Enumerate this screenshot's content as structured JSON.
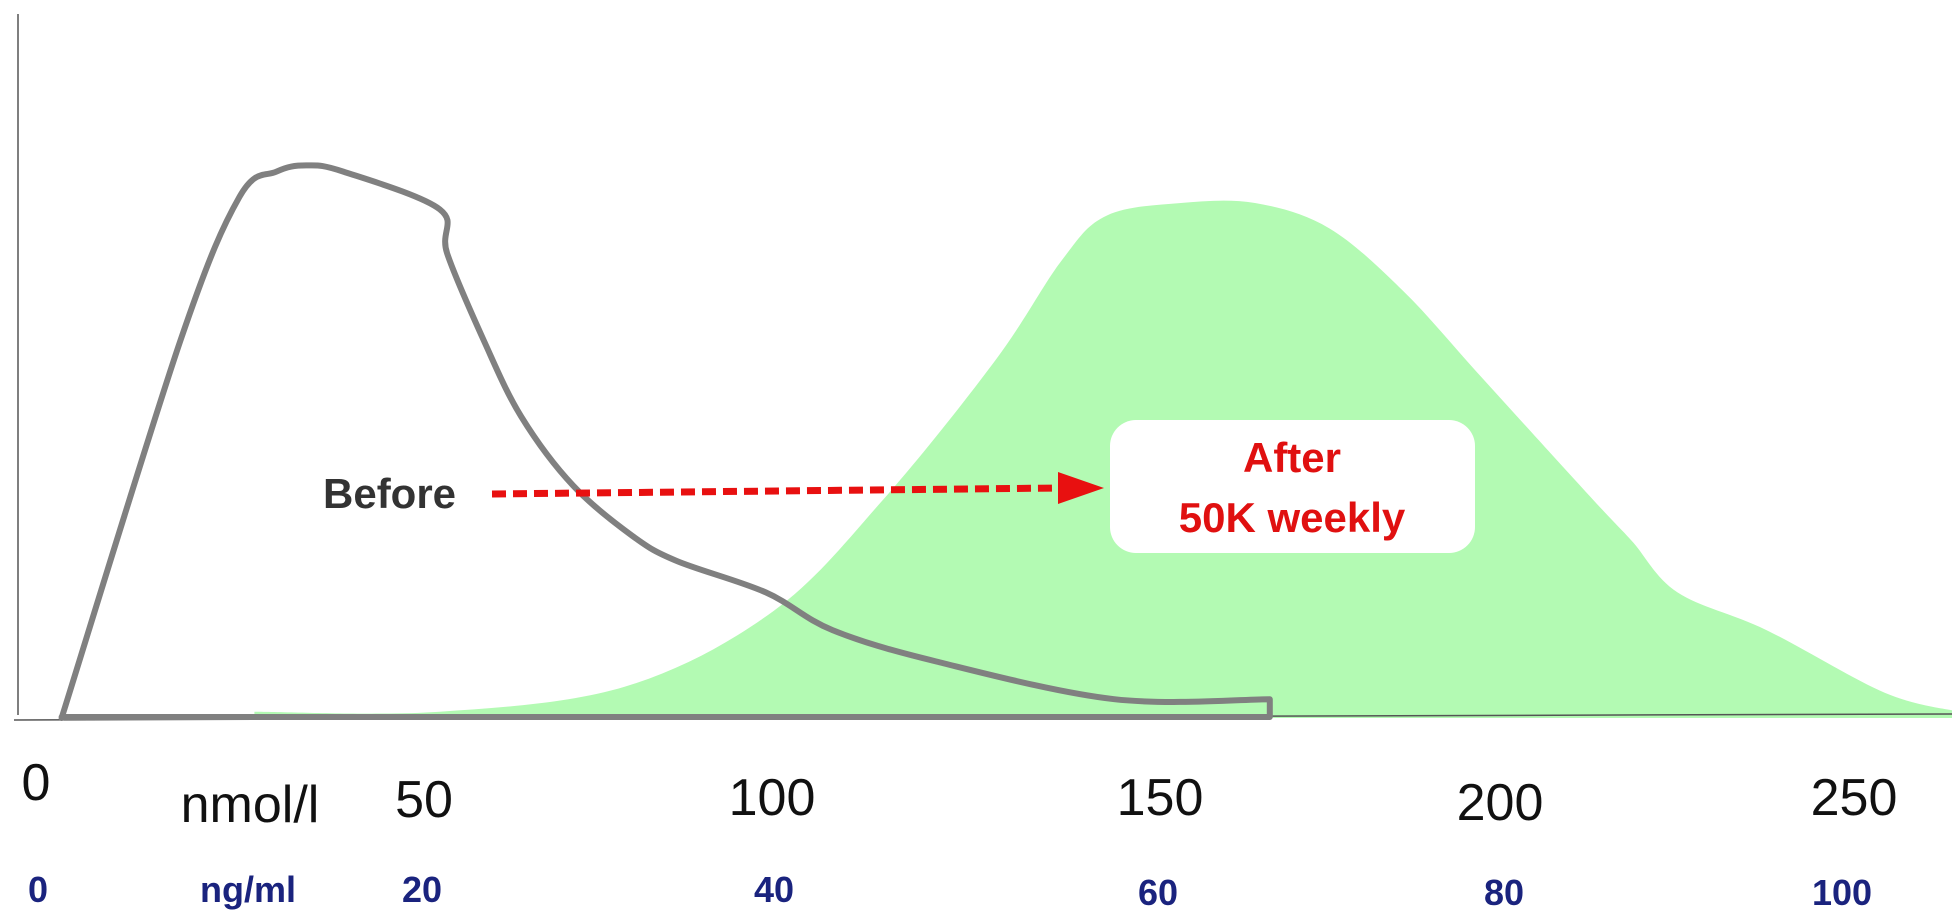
{
  "chart_data": {
    "type": "area",
    "title": "",
    "xlabel": "",
    "ylabel": "",
    "xlim": [
      0,
      260
    ],
    "ylim": [
      0,
      100
    ],
    "grid": false,
    "x_axis_primary": {
      "unit": "nmol/l",
      "ticks": [
        "0",
        "50",
        "100",
        "150",
        "200",
        "250"
      ],
      "tick_values": [
        0,
        50,
        100,
        150,
        200,
        250
      ]
    },
    "x_axis_secondary": {
      "unit": "ng/ml",
      "ticks": [
        "0",
        "20",
        "40",
        "60",
        "80",
        "100"
      ],
      "tick_values": [
        0,
        50,
        100,
        150,
        200,
        250
      ]
    },
    "series": [
      {
        "name": "Before",
        "style": "line",
        "color": "#808080",
        "x": [
          4,
          20,
          28,
          33,
          37,
          42,
          55,
          56,
          61,
          66,
          73,
          81,
          87,
          99,
          108,
          122,
          146,
          167
        ],
        "y": [
          0,
          60,
          83,
          87,
          88,
          87,
          81,
          74,
          60,
          48,
          37,
          29,
          25,
          20,
          14,
          9,
          3,
          3
        ]
      },
      {
        "name": "After 50K weekly",
        "style": "area",
        "color": "#b3fab3",
        "x": [
          30,
          55,
          80,
          100,
          115,
          130,
          139,
          145,
          155,
          165,
          175,
          185,
          195,
          205,
          212,
          216,
          222,
          234,
          250,
          260
        ],
        "y": [
          1,
          1,
          5,
          17,
          35,
          57,
          73,
          80,
          82,
          82,
          78,
          68,
          55,
          42,
          33,
          28,
          20,
          14,
          4,
          1
        ]
      }
    ],
    "annotations": [
      {
        "id": "before",
        "text": "Before"
      },
      {
        "id": "after",
        "line1": "After",
        "line2": "50K weekly"
      }
    ],
    "colors": {
      "before_line": "#808080",
      "after_fill": "#b3fab3",
      "arrow": "#e81010",
      "after_text": "#e01010",
      "ng_ticks": "#1a237e",
      "nm_ticks": "#111111"
    }
  }
}
